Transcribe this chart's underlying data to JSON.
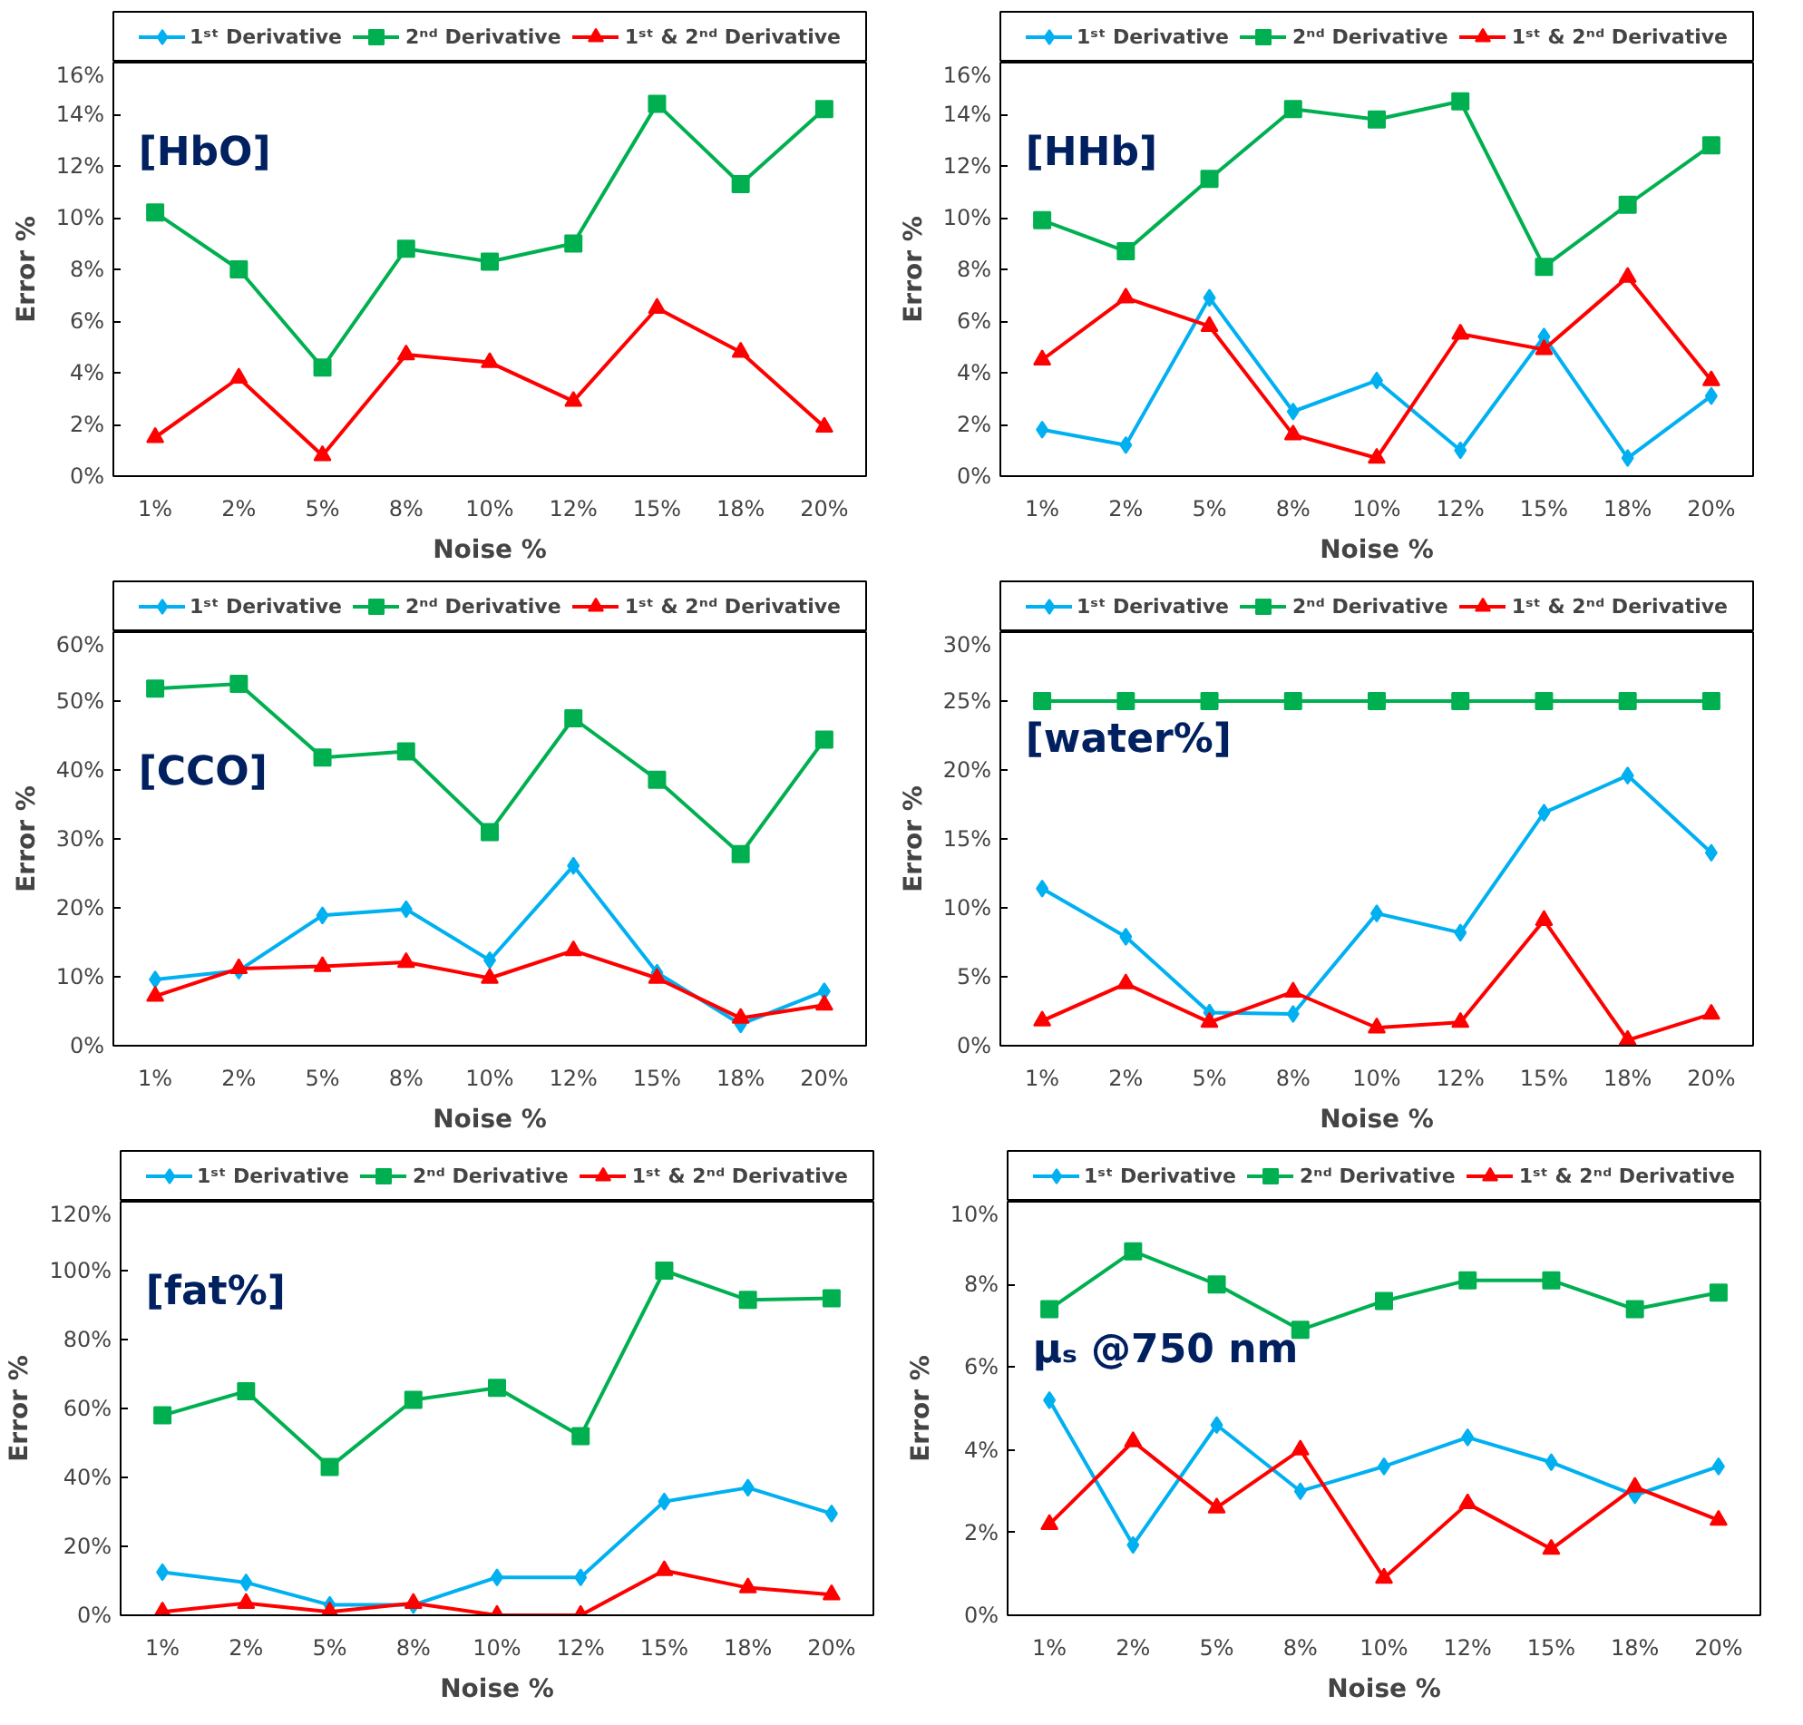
{
  "chart_data": [
    {
      "type": "line",
      "annotations": [
        "[HbO]"
      ],
      "xlabel": "Noise %",
      "ylabel": "Error %",
      "categories": [
        "1%",
        "2%",
        "5%",
        "8%",
        "10%",
        "12%",
        "15%",
        "18%",
        "20%"
      ],
      "ylim": [
        0,
        16
      ],
      "yticks": [
        {
          "value": 0,
          "label": "0%"
        },
        {
          "value": 2,
          "label": "2%"
        },
        {
          "value": 4,
          "label": "4%"
        },
        {
          "value": 6,
          "label": "6%"
        },
        {
          "value": 8,
          "label": "8%"
        },
        {
          "value": 10,
          "label": "10%"
        },
        {
          "value": 12,
          "label": "12%"
        },
        {
          "value": 14,
          "label": "14%"
        },
        {
          "value": 16,
          "label": "16%"
        }
      ],
      "legend": "top",
      "grid": false,
      "series": [
        {
          "name": "1ˢᵗ Derivative",
          "color": "#00b0f0",
          "marker": "diamond",
          "values": [
            null,
            null,
            null,
            null,
            null,
            null,
            null,
            null,
            null
          ]
        },
        {
          "name": "2ⁿᵈ Derivative",
          "color": "#00b050",
          "marker": "square",
          "values": [
            10.2,
            8.0,
            4.2,
            8.8,
            8.3,
            9.0,
            14.4,
            11.3,
            14.2
          ]
        },
        {
          "name": "1ˢᵗ & 2ⁿᵈ Derivative",
          "color": "#ff0000",
          "marker": "triangle",
          "values": [
            1.5,
            3.8,
            0.8,
            4.7,
            4.4,
            2.9,
            6.5,
            4.8,
            1.9
          ]
        }
      ]
    },
    {
      "type": "line",
      "annotations": [
        "[HHb]"
      ],
      "xlabel": "Noise %",
      "ylabel": "Error %",
      "categories": [
        "1%",
        "2%",
        "5%",
        "8%",
        "10%",
        "12%",
        "15%",
        "18%",
        "20%"
      ],
      "ylim": [
        0,
        16
      ],
      "yticks": [
        {
          "value": 0,
          "label": "0%"
        },
        {
          "value": 2,
          "label": "2%"
        },
        {
          "value": 4,
          "label": "4%"
        },
        {
          "value": 6,
          "label": "6%"
        },
        {
          "value": 8,
          "label": "8%"
        },
        {
          "value": 10,
          "label": "10%"
        },
        {
          "value": 12,
          "label": "12%"
        },
        {
          "value": 14,
          "label": "14%"
        },
        {
          "value": 16,
          "label": "16%"
        }
      ],
      "legend": "top",
      "grid": false,
      "series": [
        {
          "name": "1ˢᵗ Derivative",
          "color": "#00b0f0",
          "marker": "diamond",
          "values": [
            1.8,
            1.2,
            6.9,
            2.5,
            3.7,
            1.0,
            5.4,
            0.7,
            3.1
          ]
        },
        {
          "name": "2ⁿᵈ Derivative",
          "color": "#00b050",
          "marker": "square",
          "values": [
            9.9,
            8.7,
            11.5,
            14.2,
            13.8,
            14.5,
            8.1,
            10.5,
            12.8
          ]
        },
        {
          "name": "1ˢᵗ & 2ⁿᵈ Derivative",
          "color": "#ff0000",
          "marker": "triangle",
          "values": [
            4.5,
            6.9,
            5.8,
            1.6,
            0.7,
            5.5,
            4.9,
            7.7,
            3.7
          ]
        }
      ]
    },
    {
      "type": "line",
      "annotations": [
        "[CCO]"
      ],
      "xlabel": "Noise %",
      "ylabel": "Error %",
      "categories": [
        "1%",
        "2%",
        "5%",
        "8%",
        "10%",
        "12%",
        "15%",
        "18%",
        "20%"
      ],
      "ylim": [
        0,
        60
      ],
      "yticks": [
        {
          "value": 0,
          "label": "0%"
        },
        {
          "value": 10,
          "label": "10%"
        },
        {
          "value": 20,
          "label": "20%"
        },
        {
          "value": 30,
          "label": "30%"
        },
        {
          "value": 40,
          "label": "40%"
        },
        {
          "value": 50,
          "label": "50%"
        },
        {
          "value": 60,
          "label": "60%"
        }
      ],
      "legend": "top",
      "grid": false,
      "series": [
        {
          "name": "1ˢᵗ Derivative",
          "color": "#00b0f0",
          "marker": "diamond",
          "values": [
            9.6,
            10.9,
            18.9,
            19.8,
            12.4,
            26.1,
            10.6,
            3.1,
            7.9
          ]
        },
        {
          "name": "2ⁿᵈ Derivative",
          "color": "#00b050",
          "marker": "square",
          "values": [
            51.8,
            52.5,
            41.8,
            42.7,
            31.0,
            47.5,
            38.6,
            27.8,
            44.4
          ]
        },
        {
          "name": "1ˢᵗ & 2ⁿᵈ Derivative",
          "color": "#ff0000",
          "marker": "triangle",
          "values": [
            7.2,
            11.2,
            11.5,
            12.1,
            9.8,
            13.8,
            9.8,
            4.0,
            5.9
          ]
        }
      ]
    },
    {
      "type": "line",
      "annotations": [
        "[water%]"
      ],
      "xlabel": "Noise %",
      "ylabel": "Error %",
      "categories": [
        "1%",
        "2%",
        "5%",
        "8%",
        "10%",
        "12%",
        "15%",
        "18%",
        "20%"
      ],
      "ylim": [
        0,
        30
      ],
      "yticks": [
        {
          "value": 0,
          "label": "0%"
        },
        {
          "value": 5,
          "label": "5%"
        },
        {
          "value": 10,
          "label": "10%"
        },
        {
          "value": 15,
          "label": "15%"
        },
        {
          "value": 20,
          "label": "20%"
        },
        {
          "value": 25,
          "label": "25%"
        },
        {
          "value": 30,
          "label": "30%"
        }
      ],
      "legend": "top",
      "grid": false,
      "series": [
        {
          "name": "1ˢᵗ Derivative",
          "color": "#00b0f0",
          "marker": "diamond",
          "values": [
            11.4,
            7.9,
            2.4,
            2.3,
            9.6,
            8.2,
            16.9,
            19.6,
            14.0
          ]
        },
        {
          "name": "2ⁿᵈ Derivative",
          "color": "#00b050",
          "marker": "square",
          "values": [
            25,
            25,
            25,
            25,
            25,
            25,
            25,
            25,
            25
          ]
        },
        {
          "name": "1ˢᵗ & 2ⁿᵈ Derivative",
          "color": "#ff0000",
          "marker": "triangle",
          "values": [
            1.8,
            4.5,
            1.7,
            3.9,
            1.3,
            1.7,
            9.1,
            0.4,
            2.3
          ]
        }
      ]
    },
    {
      "type": "line",
      "annotations": [
        "[fat%]"
      ],
      "xlabel": "Noise %",
      "ylabel": "Error %",
      "categories": [
        "1%",
        "2%",
        "5%",
        "8%",
        "10%",
        "12%",
        "15%",
        "18%",
        "20%"
      ],
      "ylim": [
        0,
        120
      ],
      "yticks": [
        {
          "value": 0,
          "label": "0%"
        },
        {
          "value": 20,
          "label": "20%"
        },
        {
          "value": 40,
          "label": "40%"
        },
        {
          "value": 60,
          "label": "60%"
        },
        {
          "value": 80,
          "label": "80%"
        },
        {
          "value": 100,
          "label": "100%"
        },
        {
          "value": 120,
          "label": "120%"
        }
      ],
      "legend": "top",
      "grid": false,
      "series": [
        {
          "name": "1ˢᵗ Derivative",
          "color": "#00b0f0",
          "marker": "diamond",
          "values": [
            12.5,
            9.5,
            3,
            3,
            11,
            11,
            33,
            37,
            29.5
          ]
        },
        {
          "name": "2ⁿᵈ Derivative",
          "color": "#00b050",
          "marker": "square",
          "values": [
            58,
            65,
            43,
            62.5,
            66,
            52,
            100,
            91.5,
            92
          ]
        },
        {
          "name": "1ˢᵗ & 2ⁿᵈ Derivative",
          "color": "#ff0000",
          "marker": "triangle",
          "values": [
            1,
            3.5,
            1,
            3.5,
            0,
            0,
            13,
            8,
            6
          ]
        }
      ]
    },
    {
      "type": "line",
      "annotations": [
        "μₛ @750 nm"
      ],
      "xlabel": "Noise %",
      "ylabel": "Error %",
      "categories": [
        "1%",
        "2%",
        "5%",
        "8%",
        "10%",
        "12%",
        "15%",
        "18%",
        "20%"
      ],
      "ylim": [
        0,
        10
      ],
      "yticks": [
        {
          "value": 0,
          "label": "0%"
        },
        {
          "value": 2,
          "label": "2%"
        },
        {
          "value": 4,
          "label": "4%"
        },
        {
          "value": 6,
          "label": "6%"
        },
        {
          "value": 8,
          "label": "8%"
        },
        {
          "value": 10,
          "label": "10%"
        }
      ],
      "legend": "top",
      "grid": false,
      "series": [
        {
          "name": "1ˢᵗ Derivative",
          "color": "#00b0f0",
          "marker": "diamond",
          "values": [
            5.2,
            1.7,
            4.6,
            3.0,
            3.6,
            4.3,
            3.7,
            2.9,
            3.6
          ]
        },
        {
          "name": "2ⁿᵈ Derivative",
          "color": "#00b050",
          "marker": "square",
          "values": [
            7.4,
            8.8,
            8.0,
            6.9,
            7.6,
            8.1,
            8.1,
            7.4,
            7.8
          ]
        },
        {
          "name": "1ˢᵗ & 2ⁿᵈ Derivative",
          "color": "#ff0000",
          "marker": "triangle",
          "values": [
            2.2,
            4.2,
            2.6,
            4.0,
            0.9,
            2.7,
            1.6,
            3.1,
            2.3
          ]
        }
      ]
    }
  ]
}
